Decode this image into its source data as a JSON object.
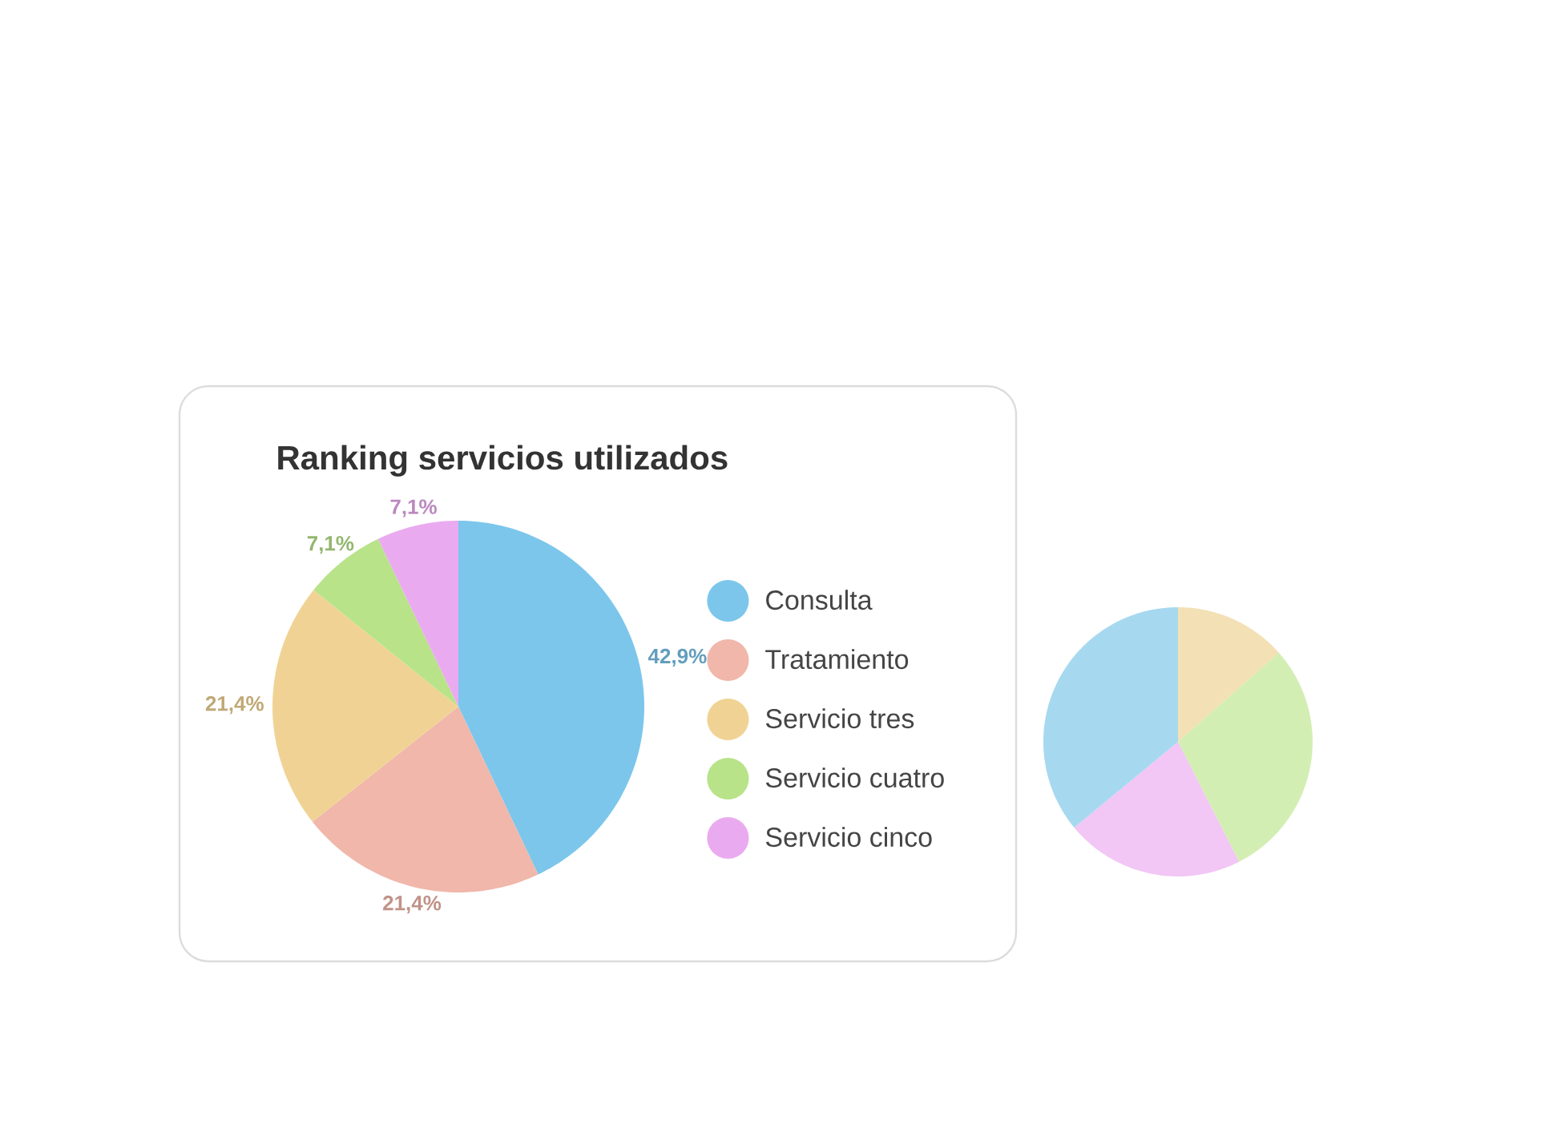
{
  "chart_data": [
    {
      "type": "pie",
      "title": "Ranking servicios utilizados",
      "categories": [
        "Consulta",
        "Tratamiento",
        "Servicio tres",
        "Servicio cuatro",
        "Servicio cinco"
      ],
      "values": [
        42.9,
        21.4,
        21.4,
        7.1,
        7.1
      ],
      "colors": [
        "#7cc6ec",
        "#f0b7aa",
        "#f0d394",
        "#b8e389",
        "#eaaaf0"
      ],
      "value_labels": [
        "42,9%",
        "21,4%",
        "21,4%",
        "7,1%",
        "7,1%"
      ],
      "legend": "right"
    },
    {
      "type": "pie",
      "categories": [
        null,
        null,
        null,
        null
      ],
      "values": [
        13.5,
        29,
        21.5,
        36
      ],
      "colors": [
        "#f3e0b5",
        "#d3eeb3",
        "#f2c6f5",
        "#a6d9f0"
      ]
    }
  ]
}
